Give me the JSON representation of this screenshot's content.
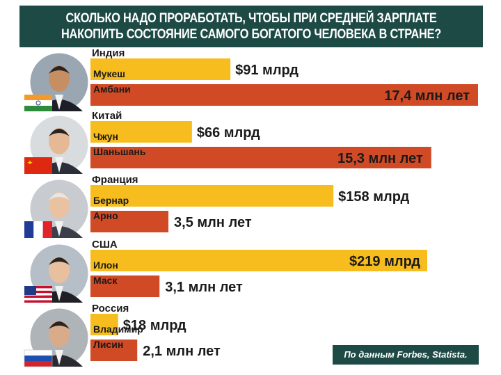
{
  "header": {
    "title_line1": "СКОЛЬКО НАДО ПРОРАБОТАТЬ, ЧТОБЫ ПРИ СРЕДНЕЙ ЗАРПЛАТЕ",
    "title_line2": "НАКОПИТЬ СОСТОЯНИЕ САМОГО БОГАТОГО ЧЕЛОВЕКА В СТРАНЕ?"
  },
  "source": "По данным Forbes, Statista.",
  "colors": {
    "header_bg": "#1e4a45",
    "wealth_bar": "#f7bd1e",
    "years_bar": "#d04a26",
    "text_dark": "#1a1a1a",
    "text_light": "#ffffff"
  },
  "chart_data": {
    "type": "bar",
    "orientation": "horizontal",
    "series": [
      {
        "name": "wealth",
        "unit": "$ млрд",
        "values": [
          91,
          66,
          158,
          219,
          18
        ]
      },
      {
        "name": "years",
        "unit": "млн лет",
        "values": [
          17.4,
          15.3,
          3.5,
          3.1,
          2.1
        ]
      }
    ],
    "rows": [
      {
        "country": "Индия",
        "name_line1": "Мукеш",
        "name_line2": "Амбани",
        "wealth_label": "$91 млрд",
        "years_label": "17,4 млн лет",
        "flag": "india-flag",
        "avatar": "person-photo"
      },
      {
        "country": "Китай",
        "name_line1": "Чжун",
        "name_line2": "Шаньшань",
        "wealth_label": "$66 млрд",
        "years_label": "15,3 млн лет",
        "flag": "china-flag",
        "avatar": "person-photo"
      },
      {
        "country": "Франция",
        "name_line1": "Бернар",
        "name_line2": "Арно",
        "wealth_label": "$158 млрд",
        "years_label": "3,5 млн лет",
        "flag": "france-flag",
        "avatar": "person-photo"
      },
      {
        "country": "США",
        "name_line1": "Илон",
        "name_line2": "Маск",
        "wealth_label": "$219 млрд",
        "years_label": "3,1 млн лет",
        "flag": "usa-flag",
        "avatar": "person-photo"
      },
      {
        "country": "Россия",
        "name_line1": "Владимир",
        "name_line2": "Лисин",
        "wealth_label": "$18 млрд",
        "years_label": "2,1 млн лет",
        "flag": "russia-flag",
        "avatar": "person-photo"
      }
    ]
  }
}
